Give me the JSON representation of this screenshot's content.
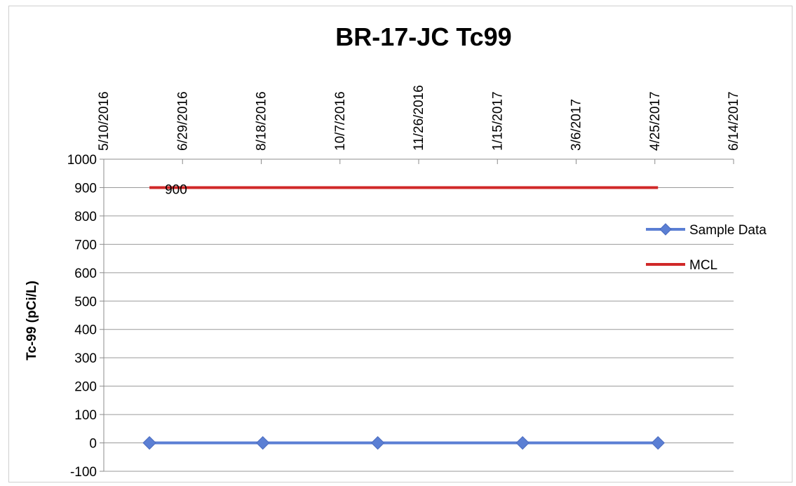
{
  "chart_data": {
    "type": "line",
    "title": "BR-17-JC Tc99",
    "ylabel": "Tc-99 (pCi/L)",
    "xlabel": "",
    "x_axis": {
      "type": "date",
      "position": "top",
      "min": "2016-05-10",
      "max": "2017-06-14",
      "ticks": [
        "5/10/2016",
        "6/29/2016",
        "8/18/2016",
        "10/7/2016",
        "11/26/2016",
        "1/15/2017",
        "3/6/2017",
        "4/25/2017",
        "6/14/2017"
      ]
    },
    "y_axis": {
      "min": -100,
      "max": 1000,
      "step": 100,
      "ticks": [
        "1000",
        "900",
        "800",
        "700",
        "600",
        "500",
        "400",
        "300",
        "200",
        "100",
        "0",
        "-100"
      ]
    },
    "grid": "horizontal",
    "legend": {
      "position": "right",
      "entries": [
        "Sample Data",
        "MCL"
      ]
    },
    "series": [
      {
        "name": "Sample Data",
        "color": "#5b7fd4",
        "marker": "diamond",
        "x": [
          "2016-06-08",
          "2016-08-19",
          "2016-10-31",
          "2017-01-31",
          "2017-04-27"
        ],
        "y": [
          0,
          0,
          0,
          0,
          0
        ]
      },
      {
        "name": "MCL",
        "color": "#d02828",
        "marker": "none",
        "x": [
          "2016-06-08",
          "2017-04-27"
        ],
        "y": [
          900,
          900
        ],
        "data_label": "900"
      }
    ]
  }
}
